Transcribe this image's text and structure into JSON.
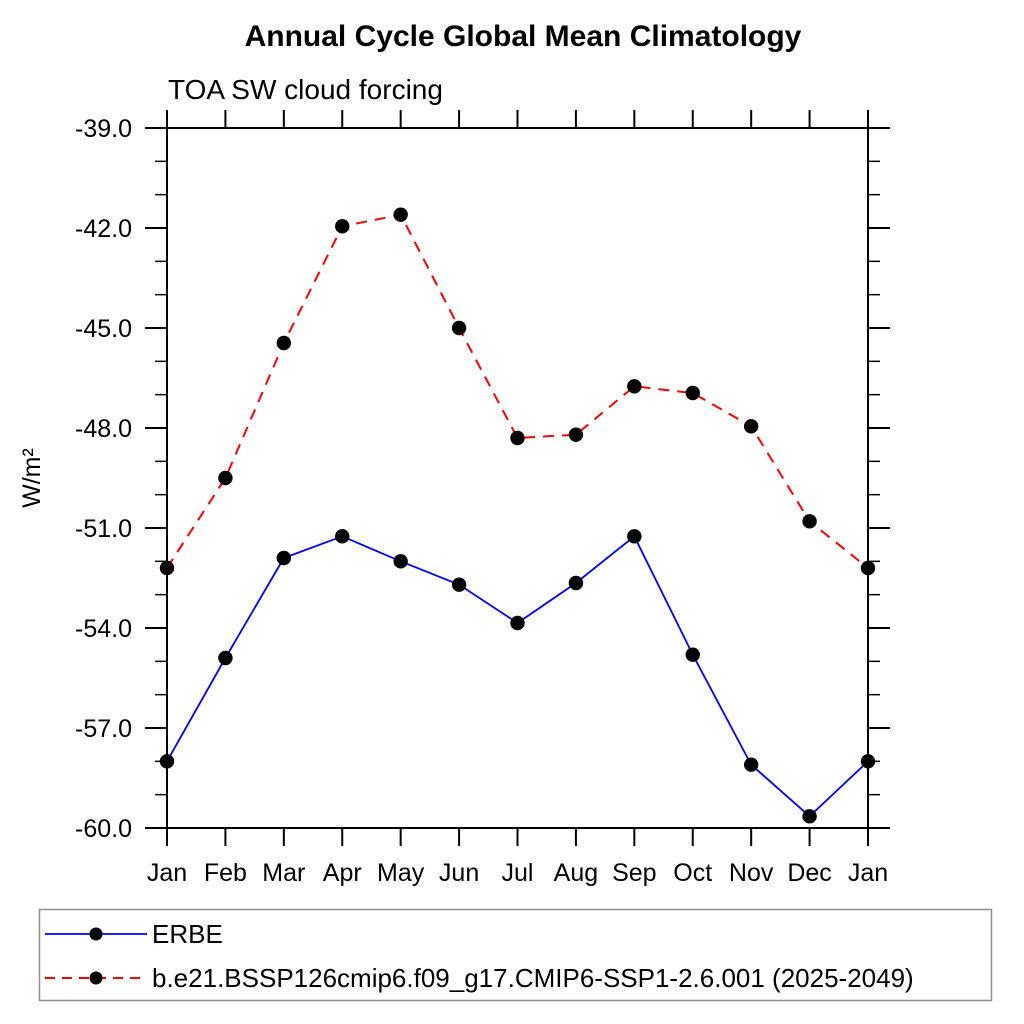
{
  "chart_data": {
    "type": "line",
    "title": "Annual Cycle Global Mean Climatology",
    "subtitle": "TOA SW cloud forcing",
    "ylabel": "W/m²",
    "xlabel": "",
    "categories": [
      "Jan",
      "Feb",
      "Mar",
      "Apr",
      "May",
      "Jun",
      "Jul",
      "Aug",
      "Sep",
      "Oct",
      "Nov",
      "Dec",
      "Jan"
    ],
    "ylim": [
      -60.0,
      -39.0
    ],
    "ytick_major_interval": 3,
    "ytick_minor_interval": 1,
    "ytick_labels": [
      "-39.0",
      "-42.0",
      "-45.0",
      "-48.0",
      "-51.0",
      "-54.0",
      "-57.0",
      "-60.0"
    ],
    "grid": false,
    "legend_position": "bottom-left",
    "marker": "filled-circle",
    "marker_color": "#000000",
    "axis_color": "#000000",
    "legend_border_color": "#8f8f8f",
    "series": [
      {
        "name": "ERBE",
        "color": "#0000ff",
        "line_style": "solid",
        "values": [
          -58.0,
          -54.9,
          -51.9,
          -51.25,
          -52.0,
          -52.7,
          -53.85,
          -52.65,
          -51.25,
          -54.8,
          -58.1,
          -59.65,
          -58.0
        ]
      },
      {
        "name": "b.e21.BSSP126cmip6.f09_g17.CMIP6-SSP1-2.6.001 (2025-2049)",
        "color": "#ff0000",
        "line_style": "dashed",
        "values": [
          -52.2,
          -49.5,
          -45.45,
          -41.95,
          -41.6,
          -45.0,
          -48.3,
          -48.2,
          -46.75,
          -46.95,
          -47.95,
          -50.8,
          -52.2
        ]
      }
    ]
  }
}
